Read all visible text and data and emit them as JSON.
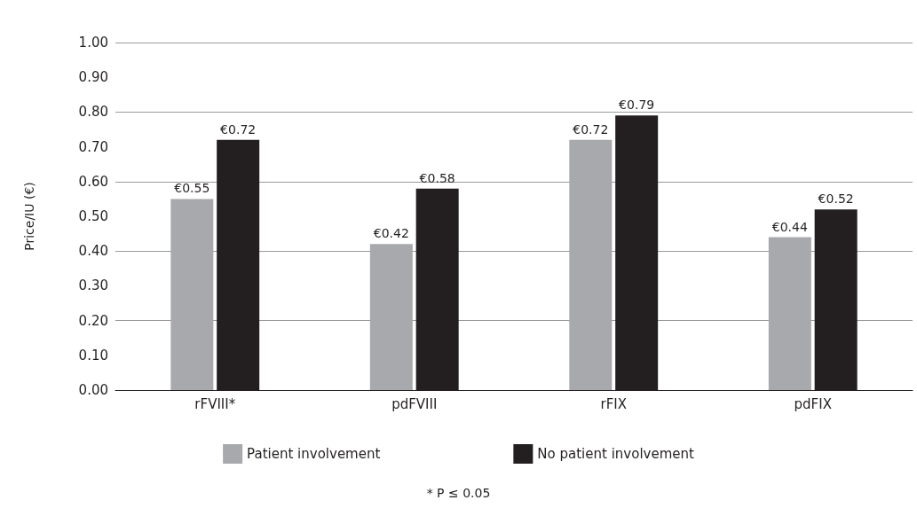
{
  "chart_data": {
    "type": "bar",
    "ylabel": "Price/IU (€)",
    "categories": [
      "rFVIII*",
      "pdFVIII",
      "rFIX",
      "pdFIX"
    ],
    "series": [
      {
        "name": "Patient involvement",
        "color": "#a7a9ac",
        "values": [
          0.55,
          0.42,
          0.72,
          0.44
        ],
        "value_labels": [
          "€0.55",
          "€0.42",
          "€0.72",
          "€0.44"
        ]
      },
      {
        "name": "No patient involvement",
        "color": "#231f20",
        "values": [
          0.72,
          0.58,
          0.79,
          0.52
        ],
        "value_labels": [
          "€0.72",
          "€0.58",
          "€0.79",
          "€0.52"
        ]
      }
    ],
    "ylim": [
      0,
      1
    ],
    "yticks": [
      {
        "value": 0,
        "label": "0.00"
      },
      {
        "value": 0.1,
        "label": "0.10"
      },
      {
        "value": 0.2,
        "label": "0.20"
      },
      {
        "value": 0.3,
        "label": "0.30"
      },
      {
        "value": 0.4,
        "label": "0.40"
      },
      {
        "value": 0.5,
        "label": "0.50"
      },
      {
        "value": 0.6,
        "label": "0.60"
      },
      {
        "value": 0.7,
        "label": "0.70"
      },
      {
        "value": 0.8,
        "label": "0.80"
      },
      {
        "value": 0.9,
        "label": "0.90"
      },
      {
        "value": 1,
        "label": "1.00"
      }
    ],
    "grid": "y",
    "legend": "bottom",
    "annotations": [
      "* P ≤ 0.05"
    ]
  }
}
